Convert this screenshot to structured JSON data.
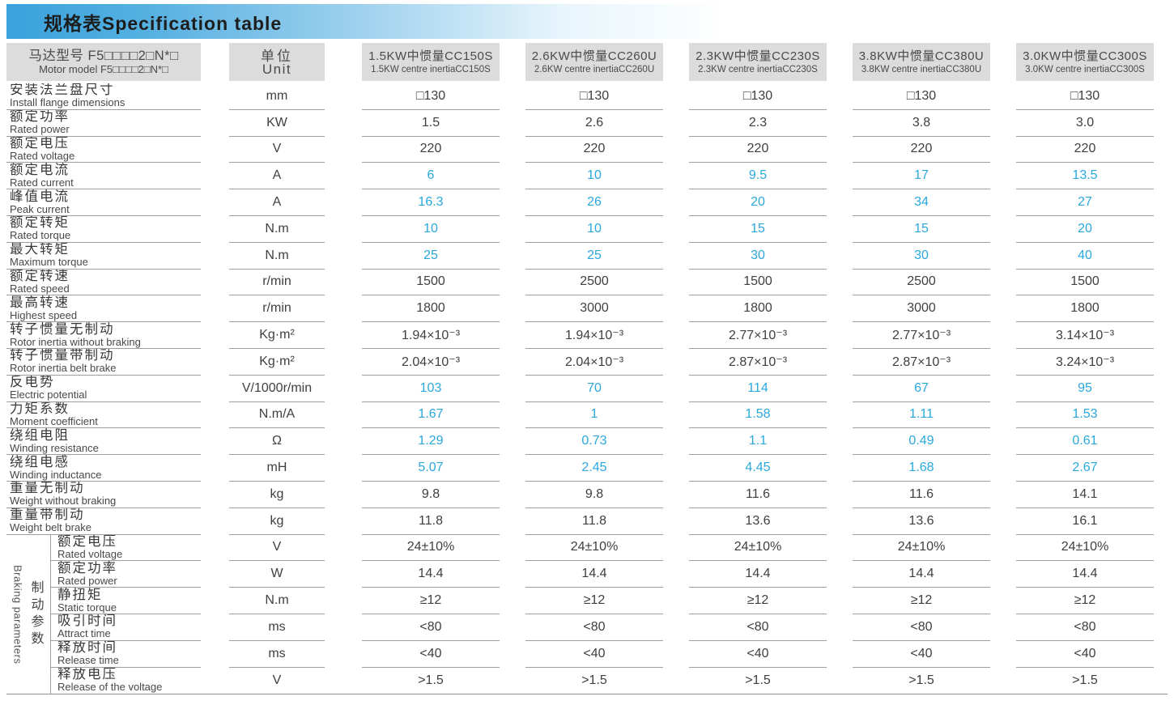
{
  "title": "规格表Specification table",
  "colors": {
    "accent_blue": "#2aa8dd",
    "header_gradient_blue": "#39a2dc",
    "header_cell_bg": "#dcdcdc",
    "row_line_gray": "#9e9e9e",
    "text_dark": "#3f3f3f"
  },
  "table": {
    "model_header": {
      "zh": "马达型号 F5□□□□2□N*□",
      "en": "Motor model F5□□□□2□N*□"
    },
    "unit_header": {
      "zh": "单位",
      "en": "Unit"
    },
    "columns": [
      {
        "zh": "1.5KW中惯量CC150S",
        "en": "1.5KW centre inertiaCC150S"
      },
      {
        "zh": "2.6KW中惯量CC260U",
        "en": "2.6KW centre inertiaCC260U"
      },
      {
        "zh": "2.3KW中惯量CC230S",
        "en": "2.3KW centre inertiaCC230S"
      },
      {
        "zh": "3.8KW中惯量CC380U",
        "en": "3.8KW centre inertiaCC380U"
      },
      {
        "zh": "3.0KW中惯量CC300S",
        "en": "3.0KW centre inertiaCC300S"
      }
    ],
    "rows": [
      {
        "zh": "安装法兰盘尺寸",
        "en": "Install flange dimensions",
        "unit": "mm",
        "values": [
          "□130",
          "□130",
          "□130",
          "□130",
          "□130"
        ],
        "accent": false
      },
      {
        "zh": "额定功率",
        "en": "Rated power",
        "unit": "KW",
        "values": [
          "1.5",
          "2.6",
          "2.3",
          "3.8",
          "3.0"
        ],
        "accent": false
      },
      {
        "zh": "额定电压",
        "en": "Rated voltage",
        "unit": "V",
        "values": [
          "220",
          "220",
          "220",
          "220",
          "220"
        ],
        "accent": false
      },
      {
        "zh": "额定电流",
        "en": "Rated current",
        "unit": "A",
        "values": [
          "6",
          "10",
          "9.5",
          "17",
          "13.5"
        ],
        "accent": true
      },
      {
        "zh": "峰值电流",
        "en": "Peak current",
        "unit": "A",
        "values": [
          "16.3",
          "26",
          "20",
          "34",
          "27"
        ],
        "accent": true
      },
      {
        "zh": "额定转矩",
        "en": "Rated torque",
        "unit": "N.m",
        "values": [
          "10",
          "10",
          "15",
          "15",
          "20"
        ],
        "accent": true
      },
      {
        "zh": "最大转矩",
        "en": "Maximum torque",
        "unit": "N.m",
        "values": [
          "25",
          "25",
          "30",
          "30",
          "40"
        ],
        "accent": true
      },
      {
        "zh": "额定转速",
        "en": "Rated speed",
        "unit": "r/min",
        "values": [
          "1500",
          "2500",
          "1500",
          "2500",
          "1500"
        ],
        "accent": false
      },
      {
        "zh": "最高转速",
        "en": "Highest speed",
        "unit": "r/min",
        "values": [
          "1800",
          "3000",
          "1800",
          "3000",
          "1800"
        ],
        "accent": false
      },
      {
        "zh": "转子惯量无制动",
        "en": "Rotor inertia without braking",
        "unit": "Kg·m²",
        "values": [
          "1.94×10⁻³",
          "1.94×10⁻³",
          "2.77×10⁻³",
          "2.77×10⁻³",
          "3.14×10⁻³"
        ],
        "accent": false
      },
      {
        "zh": "转子惯量带制动",
        "en": "Rotor inertia belt brake",
        "unit": "Kg·m²",
        "values": [
          "2.04×10⁻³",
          "2.04×10⁻³",
          "2.87×10⁻³",
          "2.87×10⁻³",
          "3.24×10⁻³"
        ],
        "accent": false
      },
      {
        "zh": "反电势",
        "en": "Electric potential",
        "unit": "V/1000r/min",
        "values": [
          "103",
          "70",
          "114",
          "67",
          "95"
        ],
        "accent": true
      },
      {
        "zh": "力矩系数",
        "en": "Moment coefficient",
        "unit": "N.m/A",
        "values": [
          "1.67",
          "1",
          "1.58",
          "1.11",
          "1.53"
        ],
        "accent": true
      },
      {
        "zh": "绕组电阻",
        "en": "Winding resistance",
        "unit": "Ω",
        "values": [
          "1.29",
          "0.73",
          "1.1",
          "0.49",
          "0.61"
        ],
        "accent": true
      },
      {
        "zh": "绕组电感",
        "en": "Winding inductance",
        "unit": "mH",
        "values": [
          "5.07",
          "2.45",
          "4.45",
          "1.68",
          "2.67"
        ],
        "accent": true
      },
      {
        "zh": "重量无制动",
        "en": "Weight without braking",
        "unit": "kg",
        "values": [
          "9.8",
          "9.8",
          "11.6",
          "11.6",
          "14.1"
        ],
        "accent": false
      },
      {
        "zh": "重量带制动",
        "en": "Weight belt brake",
        "unit": "kg",
        "values": [
          "11.8",
          "11.8",
          "13.6",
          "13.6",
          "16.1"
        ],
        "accent": false
      }
    ],
    "braking": {
      "label_zh": "制动参数",
      "label_en": "Braking parameters",
      "rows": [
        {
          "zh": "额定电压",
          "en": "Rated voltage",
          "unit": "V",
          "values": [
            "24±10%",
            "24±10%",
            "24±10%",
            "24±10%",
            "24±10%"
          ],
          "accent": false
        },
        {
          "zh": "额定功率",
          "en": "Rated power",
          "unit": "W",
          "values": [
            "14.4",
            "14.4",
            "14.4",
            "14.4",
            "14.4"
          ],
          "accent": false
        },
        {
          "zh": "静扭矩",
          "en": "Static torque",
          "unit": "N.m",
          "values": [
            "≥12",
            "≥12",
            "≥12",
            "≥12",
            "≥12"
          ],
          "accent": false
        },
        {
          "zh": "吸引时间",
          "en": "Attract time",
          "unit": "ms",
          "values": [
            "<80",
            "<80",
            "<80",
            "<80",
            "<80"
          ],
          "accent": false
        },
        {
          "zh": "释放时间",
          "en": "Release time",
          "unit": "ms",
          "values": [
            "<40",
            "<40",
            "<40",
            "<40",
            "<40"
          ],
          "accent": false
        },
        {
          "zh": "释放电压",
          "en": "Release of the voltage",
          "unit": "V",
          "values": [
            ">1.5",
            ">1.5",
            ">1.5",
            ">1.5",
            ">1.5"
          ],
          "accent": false
        }
      ]
    }
  }
}
